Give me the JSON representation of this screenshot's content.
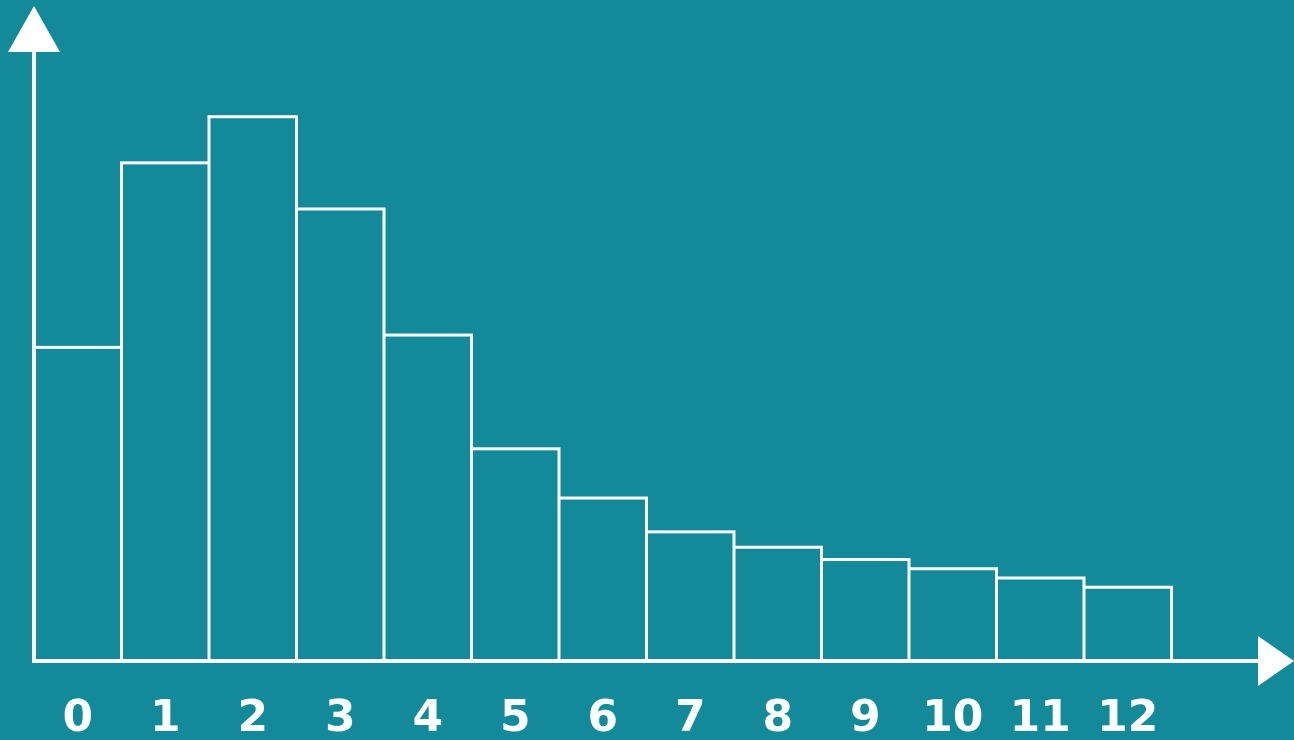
{
  "chart_data": {
    "type": "bar",
    "categories": [
      "0",
      "1",
      "2",
      "3",
      "4",
      "5",
      "6",
      "7",
      "8",
      "9",
      "10",
      "11",
      "12"
    ],
    "values": [
      51,
      81,
      88.5,
      73.5,
      53,
      34.5,
      26.5,
      21,
      18.5,
      16.5,
      15,
      13.5,
      12
    ],
    "ylim": [
      0,
      100
    ],
    "grid": false,
    "legend": "none",
    "colors": {
      "background": "#138a99",
      "stroke": "#ffffff"
    }
  }
}
